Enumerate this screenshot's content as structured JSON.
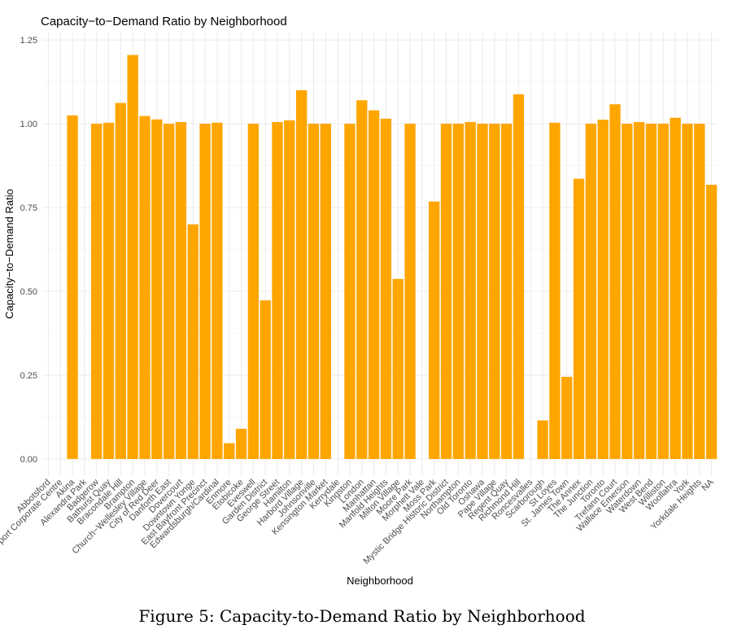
{
  "chart_data": {
    "type": "bar",
    "title": "Capacity−to−Demand Ratio by Neighborhood",
    "x_label": "Neighborhood",
    "y_label": "Capacity−to−Demand Ratio",
    "caption": "Figure 5: Capacity-to-Demand Ratio by Neighborhood",
    "color": "#ffa500",
    "grid": true,
    "categories": [
      "Abbotsford",
      "Airport Corporate Centre",
      "Akina",
      "Alexandra Park",
      "Badgerow",
      "Bathurst Quay",
      "Bracondale Hill",
      "Brampton",
      "Church−Wellesley Village",
      "City of Red Deer",
      "Danforth East",
      "Dovercourt",
      "Downtown Yonge",
      "East Bayfront Precinct",
      "Edwardsburgh/Cardinal",
      "Enmore",
      "Etobicoke",
      "Eveswell",
      "Garden District",
      "George Street",
      "Hamilton",
      "Harbord Village",
      "Johnsonville",
      "Kensington Market",
      "Kerrydale",
      "Kingston",
      "London",
      "Manhattan",
      "Manfold Heights",
      "Milton Village",
      "Moore Park",
      "Morphett Vale",
      "Moss Park",
      "Mystic Bridge Historic District",
      "Northampton",
      "Old Toronto",
      "Oshawa",
      "Pape Village",
      "Regent Quay",
      "Richmond Hill",
      "Roncesvalles",
      "Scarborough",
      "St Loyes",
      "St. James Town",
      "The Annex",
      "The Junction",
      "Toronto",
      "Trefann Court",
      "Wallace Emerson",
      "Waterdown",
      "West Bend",
      "Williston",
      "Woollahra",
      "York",
      "Yorkdale Heights",
      "NA"
    ],
    "values": [
      null,
      null,
      1.025,
      null,
      1.0,
      1.003,
      1.062,
      1.205,
      1.023,
      1.013,
      1.0,
      1.005,
      0.7,
      1.0,
      1.003,
      0.047,
      0.09,
      1.0,
      0.473,
      1.005,
      1.01,
      1.1,
      1.0,
      1.0,
      null,
      1.0,
      1.07,
      1.04,
      1.015,
      0.537,
      1.0,
      null,
      0.768,
      1.0,
      1.0,
      1.005,
      1.0,
      1.0,
      1.0,
      1.088,
      null,
      0.115,
      1.003,
      0.245,
      0.836,
      1.0,
      1.012,
      1.058,
      1.0,
      1.005,
      1.0,
      1.0,
      1.018,
      1.0,
      1.0,
      0.818
    ],
    "ylim": [
      -0.051,
      1.272
    ],
    "yticks": [
      {
        "value": 0,
        "label": "0.00"
      },
      0.25,
      {
        "value": 0.5,
        "label": "0.50"
      },
      0.75,
      {
        "value": 1,
        "label": "1.00"
      },
      1.25
    ]
  }
}
